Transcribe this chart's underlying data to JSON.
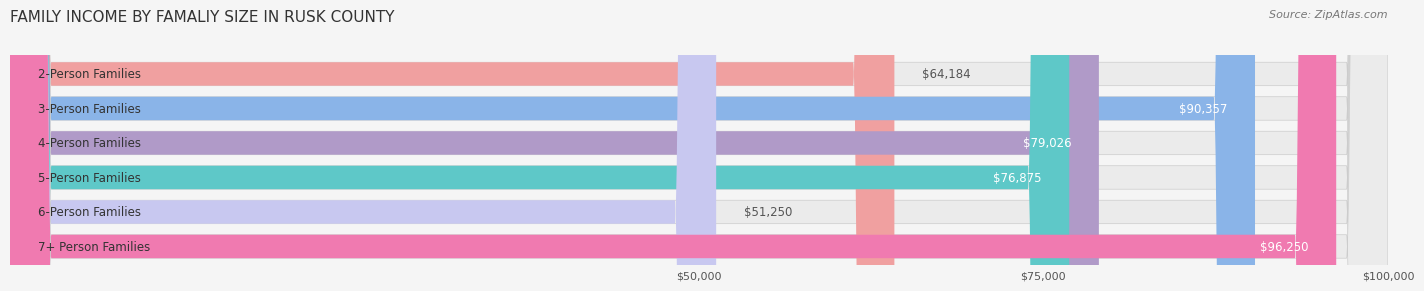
{
  "title": "FAMILY INCOME BY FAMALIY SIZE IN RUSK COUNTY",
  "source": "Source: ZipAtlas.com",
  "categories": [
    "2-Person Families",
    "3-Person Families",
    "4-Person Families",
    "5-Person Families",
    "6-Person Families",
    "7+ Person Families"
  ],
  "values": [
    64184,
    90357,
    79026,
    76875,
    51250,
    96250
  ],
  "bar_colors": [
    "#f0a0a0",
    "#8ab4e8",
    "#b09ac8",
    "#5ec8c8",
    "#c8c8f0",
    "#f07ab0"
  ],
  "label_colors": [
    "#555555",
    "#ffffff",
    "#555555",
    "#555555",
    "#555555",
    "#ffffff"
  ],
  "xlim": [
    0,
    100000
  ],
  "xticks": [
    0,
    50000,
    75000,
    100000
  ],
  "xtick_labels": [
    "",
    "$50,000",
    "$75,000",
    "$100,000"
  ],
  "bg_color": "#f5f5f5",
  "bar_bg_color": "#ebebeb",
  "title_fontsize": 11,
  "source_fontsize": 8,
  "label_fontsize": 8.5,
  "value_fontsize": 8.5
}
